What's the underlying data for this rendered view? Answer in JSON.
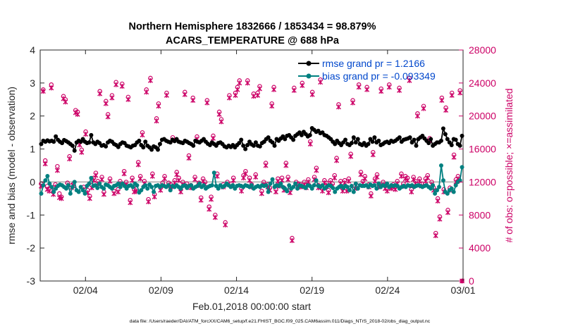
{
  "chart_data": {
    "type": "line",
    "title_line1": "Northern Hemisphere 1832666 / 1853434 = 98.879%",
    "title_line2": "ACARS_TEMPERATURE @ 688 hPa",
    "xlabel": "Feb.01,2018 00:00:00 start",
    "ylabel_left": "rmse and bias (model - observation)",
    "ylabel_right": "# of obs: o=possible; ×=assimilated",
    "footer": "data file: /Users/raeder/DAI/ATM_forcXX/CAM6_setup/f.e21.FHIST_BGC.f09_025.CAM6assim.011/Diags_NTrS_2018-02/obs_diag_output.nc",
    "xlim": [
      0,
      28
    ],
    "ylim_left": [
      -3,
      4
    ],
    "ylim_right": [
      0,
      28000
    ],
    "x_ticks": [
      3,
      8,
      13,
      18,
      23,
      28
    ],
    "x_tick_labels": [
      "02/04",
      "02/09",
      "02/14",
      "02/19",
      "02/24",
      "03/01"
    ],
    "y_left_ticks": [
      -3,
      -2,
      -1,
      0,
      1,
      2,
      3,
      4
    ],
    "y_left_tick_labels": [
      "-3",
      "-2",
      "-1",
      "0",
      "1",
      "2",
      "3",
      "4"
    ],
    "y_right_ticks": [
      0,
      4000,
      8000,
      12000,
      16000,
      20000,
      24000,
      28000
    ],
    "y_right_tick_labels": [
      "0",
      "4000",
      "8000",
      "12000",
      "16000",
      "20000",
      "24000",
      "28000"
    ],
    "zero_line": 0,
    "colors": {
      "rmse": "#000000",
      "bias": "#008080",
      "obs": "#cc0066",
      "zero": "#bbbbbb",
      "legend_text": "#0047cc"
    },
    "legend": [
      {
        "name": "rmse grand pr = 1.2166",
        "series": "rmse"
      },
      {
        "name": "bias grand pr = -0.093349",
        "series": "bias"
      }
    ],
    "series": [
      {
        "name": "rmse",
        "y_axis": "left",
        "values": [
          1.15,
          1.25,
          1.22,
          1.26,
          1.23,
          1.25,
          1.22,
          1.38,
          1.28,
          1.22,
          1.18,
          1.27,
          1.24,
          1.2,
          1.15,
          1.1,
          0.95,
          1.2,
          1.25,
          1.22,
          1.3,
          1.22,
          1.18,
          1.2,
          1.42,
          1.2,
          1.15,
          1.22,
          1.18,
          1.1,
          1.12,
          1.08,
          1.2,
          1.25,
          1.22,
          1.15,
          1.12,
          1.06,
          1.15,
          1.2,
          1.18,
          1.1,
          1.08,
          1.05,
          1.1,
          1.12,
          1.2,
          1.25,
          1.12,
          1.05,
          1.22,
          1.1,
          1.05,
          0.98,
          1.08,
          1.05,
          0.98,
          1.15,
          1.28,
          1.3,
          1.25,
          1.22,
          1.2,
          1.28,
          1.24,
          1.3,
          1.22,
          1.2,
          1.18,
          1.25,
          1.22,
          1.18,
          1.15,
          1.1,
          1.25,
          1.22,
          1.2,
          1.25,
          1.3,
          1.22,
          1.16,
          1.12,
          1.2,
          1.15,
          1.1,
          1.18,
          1.2,
          1.15,
          1.08,
          1.05,
          1.1,
          1.06,
          1.12,
          1.05,
          1.12,
          1.18,
          1.28,
          1.1,
          1.0,
          1.12,
          1.22,
          1.14,
          1.1,
          1.2,
          1.1,
          1.08,
          1.18,
          1.22,
          1.3,
          1.35,
          1.25,
          1.2,
          1.1,
          1.3,
          1.25,
          1.32,
          1.38,
          1.3,
          1.4,
          1.42,
          1.35,
          1.28,
          1.4,
          1.45,
          1.5,
          1.42,
          1.52,
          1.45,
          1.38,
          1.42,
          1.63,
          1.58,
          1.52,
          1.55,
          1.48,
          1.5,
          1.42,
          1.4,
          1.35,
          1.3,
          1.22,
          1.15,
          1.25,
          1.18,
          1.12,
          1.2,
          1.28,
          1.15,
          1.12,
          1.18,
          1.35,
          1.2,
          1.3,
          1.15,
          1.12,
          1.18,
          1.1,
          1.15,
          1.3,
          1.22,
          1.35,
          1.2,
          1.25,
          1.12,
          1.15,
          1.2,
          1.22,
          1.18,
          1.25,
          1.22,
          1.25,
          1.3,
          1.35,
          1.22,
          1.28,
          1.3,
          1.32,
          1.35,
          1.2,
          1.28,
          1.1,
          1.3,
          1.35,
          1.4,
          1.32,
          1.25,
          1.18,
          1.3,
          1.1,
          1.15,
          1.2,
          1.2,
          1.25,
          1.62,
          1.45,
          1.3,
          1.2,
          1.12,
          1.3,
          1.28,
          1.15,
          1.1,
          1.4
        ]
      },
      {
        "name": "bias",
        "y_axis": "left",
        "values": [
          -0.35,
          -0.1,
          0.05,
          0.18,
          -0.05,
          -0.15,
          -0.3,
          -0.2,
          -0.12,
          -0.08,
          -0.1,
          -0.15,
          -0.2,
          -0.1,
          -0.35,
          -0.15,
          0.0,
          -0.25,
          -0.3,
          -0.15,
          -0.25,
          -0.35,
          -0.12,
          -0.05,
          0.12,
          -0.12,
          -0.1,
          -0.18,
          -0.05,
          -0.15,
          -0.2,
          -0.08,
          -0.1,
          -0.15,
          -0.2,
          -0.12,
          -0.1,
          -0.05,
          -0.15,
          -0.05,
          -0.12,
          -0.2,
          -0.12,
          -0.1,
          -0.15,
          -0.05,
          -0.1,
          -0.32,
          -0.25,
          -0.15,
          -0.1,
          -0.2,
          -0.08,
          -0.15,
          -0.3,
          -0.12,
          -0.1,
          -0.15,
          -0.1,
          -0.12,
          -0.15,
          -0.1,
          -0.25,
          -0.12,
          -0.15,
          -0.1,
          -0.15,
          -0.2,
          -0.12,
          -0.1,
          -0.18,
          -0.12,
          -0.1,
          -0.2,
          -0.15,
          -0.12,
          -0.05,
          -0.15,
          -0.1,
          -0.2,
          -0.15,
          -0.12,
          -0.1,
          0.28,
          -0.12,
          -0.2,
          -0.1,
          -0.15,
          -0.12,
          -0.05,
          -0.1,
          -0.15,
          -0.1,
          -0.2,
          -0.12,
          -0.1,
          -0.12,
          -0.15,
          -0.1,
          -0.12,
          -0.15,
          -0.1,
          -0.2,
          -0.15,
          -0.12,
          -0.15,
          -0.1,
          -0.12,
          -0.1,
          -0.3,
          -0.05,
          0.08,
          -0.15,
          -0.1,
          -0.12,
          -0.05,
          -0.15,
          -0.2,
          -0.28,
          -0.1,
          -0.2,
          -0.15,
          -0.05,
          -0.2,
          -0.1,
          -0.12,
          -0.15,
          -0.18,
          -0.1,
          -0.12,
          -0.2,
          -0.1,
          0.05,
          -0.12,
          -0.15,
          -0.1,
          -0.2,
          -0.15,
          -0.1,
          -0.12,
          -0.18,
          -0.3,
          -0.2,
          -0.15,
          -0.12,
          -0.18,
          -0.12,
          -0.15,
          -0.25,
          -0.12,
          -0.3,
          -0.05,
          -0.2,
          -0.1,
          -0.12,
          -0.12,
          -0.1,
          -0.15,
          -0.08,
          -0.12,
          -0.1,
          -0.2,
          -0.05,
          -0.15,
          -0.1,
          -0.12,
          -0.05,
          -0.15,
          -0.1,
          -0.12,
          -0.1,
          -0.12,
          -0.2,
          -0.15,
          -0.12,
          -0.15,
          -0.1,
          -0.12,
          -0.1,
          -0.15,
          -0.12,
          -0.1,
          -0.12,
          -0.15,
          -0.12,
          -0.1,
          -0.15,
          -0.2,
          -0.1,
          -0.35,
          -0.25,
          -0.15,
          0.5,
          0.05,
          -0.3,
          -0.35,
          -0.25,
          -0.2,
          -0.3,
          -0.1,
          0.0,
          0.05,
          0.45
        ]
      },
      {
        "name": "possible",
        "y_axis": "right",
        "marker": "o",
        "values": [
          11800,
          23200,
          14600,
          11500,
          11200,
          23800,
          10800,
          11700,
          13900,
          10600,
          10200,
          22400,
          22000,
          11900,
          15100,
          11600,
          11800,
          20700,
          20500,
          16800,
          15900,
          11400,
          18100,
          11000,
          10300,
          11600,
          12500,
          13100,
          12100,
          23000,
          12600,
          10800,
          21800,
          20200,
          12400,
          22500,
          10900,
          24100,
          11100,
          12100,
          23900,
          13300,
          12000,
          22300,
          9800,
          12500,
          11100,
          11200,
          14400,
          12700,
          18000,
          12100,
          23200,
          9900,
          24600,
          13000,
          10500,
          19700,
          21500,
          11300,
          11900,
          12700,
          22800,
          11900,
          11700,
          17400,
          12200,
          13200,
          12500,
          11100,
          12000,
          22900,
          11800,
          15200,
          11600,
          22200,
          12600,
          17500,
          11900,
          10100,
          12400,
          12000,
          21900,
          9000,
          10200,
          17600,
          8000,
          13000,
          20500,
          19600,
          11700,
          7100,
          12000,
          22500,
          11800,
          12500,
          22800,
          23500,
          24300,
          11200,
          12800,
          13300,
          24300,
          12500,
          11700,
          22700,
          12900,
          22800,
          23600,
          10900,
          12000,
          14300,
          11700,
          11300,
          21500,
          23500,
          11100,
          12400,
          11800,
          12500,
          11300,
          14300,
          12600,
          11000,
          5200,
          23400,
          12000,
          11800,
          11700,
          24000,
          12000,
          11600,
          12300,
          16900,
          22900,
          12600,
          13700,
          11600,
          24400,
          11200,
          12200,
          11900,
          11000,
          12200,
          11800,
          12800,
          14900,
          21400,
          12100,
          11200,
          12200,
          11200,
          12400,
          15400,
          21900,
          11500,
          11600,
          23800,
          13200,
          12100,
          12700,
          23500,
          11700,
          10600,
          15600,
          12400,
          12900,
          11700,
          23300,
          12000,
          11500,
          11200,
          23800,
          11500,
          11700,
          11400,
          12100,
          23400,
          13000,
          11800,
          12700,
          12500,
          24600,
          11100,
          12600,
          12100,
          20300,
          12400,
          11800,
          21200,
          12400,
          12800,
          17300,
          12000,
          11300,
          5800,
          10000,
          7800,
          22200,
          11100,
          21000,
          8600,
          11300,
          22800,
          15300,
          12300,
          12700,
          23100,
          0
        ]
      },
      {
        "name": "assimilated",
        "y_axis": "right",
        "marker": "x",
        "values": [
          11500,
          23000,
          14200,
          11100,
          10900,
          23400,
          10500,
          11400,
          13400,
          10100,
          10000,
          22100,
          21700,
          11600,
          14800,
          11300,
          11500,
          20400,
          20200,
          16500,
          15600,
          11100,
          17800,
          10700,
          10000,
          11300,
          12200,
          12800,
          11800,
          22700,
          12300,
          10500,
          21500,
          19900,
          12100,
          22200,
          10600,
          23800,
          10800,
          11800,
          23600,
          13000,
          11700,
          22000,
          9500,
          12200,
          10800,
          10900,
          14100,
          12400,
          17700,
          11800,
          22900,
          9600,
          24300,
          12700,
          10200,
          19400,
          21200,
          11000,
          11600,
          12400,
          22500,
          11600,
          11400,
          17100,
          11900,
          12900,
          12200,
          10800,
          11700,
          22600,
          11500,
          14900,
          11300,
          21900,
          12300,
          17200,
          11600,
          9800,
          12100,
          11700,
          21600,
          8700,
          9900,
          17300,
          7700,
          12700,
          20200,
          19300,
          11400,
          6800,
          11700,
          22200,
          11500,
          12200,
          22500,
          23200,
          24000,
          10900,
          12500,
          13000,
          24000,
          12200,
          11400,
          22400,
          12600,
          22500,
          23300,
          10600,
          11700,
          14000,
          11400,
          11000,
          21200,
          23200,
          10800,
          12100,
          11500,
          12200,
          11000,
          14000,
          12300,
          10700,
          4900,
          23100,
          11700,
          11500,
          11400,
          23700,
          11700,
          11300,
          12000,
          16600,
          22600,
          12300,
          13400,
          11300,
          24100,
          10900,
          11900,
          11600,
          10700,
          11900,
          11500,
          12500,
          14600,
          21100,
          11800,
          10900,
          11900,
          10900,
          12100,
          15100,
          21600,
          11200,
          11300,
          23500,
          12900,
          11800,
          12400,
          23200,
          11400,
          10300,
          15300,
          12100,
          12600,
          11400,
          23000,
          11700,
          11200,
          10900,
          23500,
          11200,
          11400,
          11100,
          11800,
          23100,
          12700,
          11500,
          12400,
          12200,
          24300,
          10800,
          12300,
          11800,
          20000,
          12100,
          11500,
          20900,
          12100,
          12500,
          17000,
          11700,
          11000,
          5500,
          9700,
          7500,
          21900,
          10800,
          20700,
          8300,
          11000,
          22500,
          15000,
          12000,
          12400,
          22800,
          0
        ]
      }
    ]
  }
}
